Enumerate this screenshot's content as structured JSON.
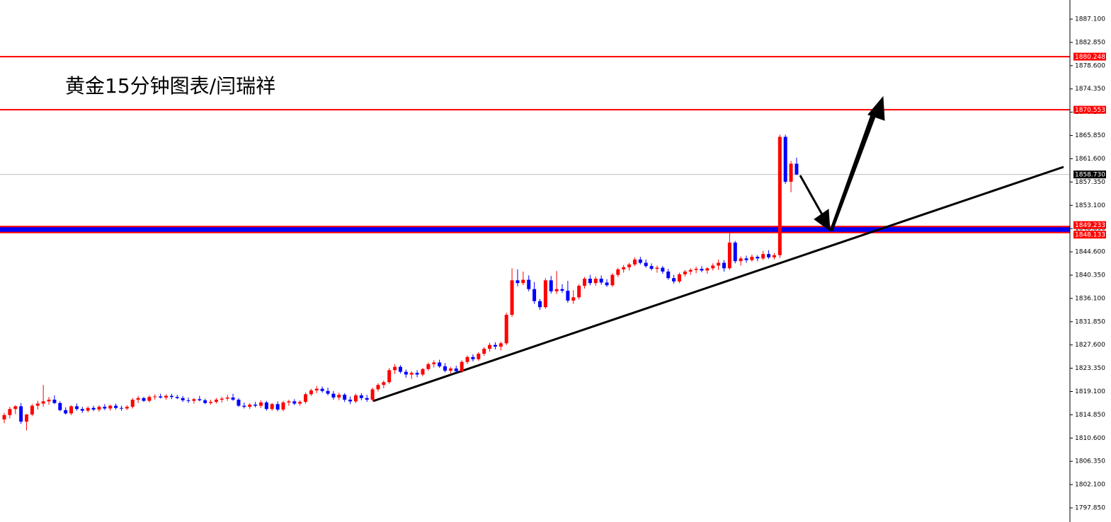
{
  "chart_data": {
    "type": "candlestick",
    "title": "黄金15分钟图表/闫瑞祥",
    "up_color": "#ff0000",
    "down_color": "#0000ff",
    "ylim": [
      1795.27,
      1890.59
    ],
    "yticks": [
      {
        "value": 1887.1,
        "label": "1887.100"
      },
      {
        "value": 1882.85,
        "label": "1882.850"
      },
      {
        "value": 1878.6,
        "label": "1878.600"
      },
      {
        "value": 1874.35,
        "label": "1874.350"
      },
      {
        "value": 1870.1,
        "label": "1870.100"
      },
      {
        "value": 1865.85,
        "label": "1865.850"
      },
      {
        "value": 1861.6,
        "label": "1861.600"
      },
      {
        "value": 1857.35,
        "label": "1857.350"
      },
      {
        "value": 1853.1,
        "label": "1853.100"
      },
      {
        "value": 1848.85,
        "label": "1848.850"
      },
      {
        "value": 1844.6,
        "label": "1844.600"
      },
      {
        "value": 1840.35,
        "label": "1840.350"
      },
      {
        "value": 1836.1,
        "label": "1836.100"
      },
      {
        "value": 1831.85,
        "label": "1831.850"
      },
      {
        "value": 1827.6,
        "label": "1827.600"
      },
      {
        "value": 1823.35,
        "label": "1823.350"
      },
      {
        "value": 1819.1,
        "label": "1819.100"
      },
      {
        "value": 1814.85,
        "label": "1814.850"
      },
      {
        "value": 1810.6,
        "label": "1810.600"
      },
      {
        "value": 1806.35,
        "label": "1806.350"
      },
      {
        "value": 1802.1,
        "label": "1802.100"
      },
      {
        "value": 1797.85,
        "label": "1797.850"
      }
    ],
    "levels": [
      {
        "value": 1880.248,
        "color": "#ff0000"
      },
      {
        "value": 1870.553,
        "color": "#ff0000"
      },
      {
        "value": 1849.233,
        "color": "#ff0000"
      },
      {
        "value": 1848.133,
        "color": "#ff0000"
      }
    ],
    "band_color": "#0000ff",
    "current_price": {
      "value": 1858.73,
      "label": "1858.730",
      "color": "#c0c0c0"
    },
    "candles": [
      [
        1814.0,
        1815.2,
        1813.3,
        1814.8
      ],
      [
        1814.8,
        1816.3,
        1814.2,
        1815.9
      ],
      [
        1815.9,
        1816.6,
        1815.0,
        1816.4
      ],
      [
        1816.4,
        1817.0,
        1813.2,
        1813.6
      ],
      [
        1813.6,
        1815.0,
        1812.0,
        1814.9
      ],
      [
        1814.9,
        1816.8,
        1814.6,
        1816.5
      ],
      [
        1816.5,
        1817.4,
        1815.8,
        1816.9
      ],
      [
        1816.9,
        1820.3,
        1816.3,
        1817.3
      ],
      [
        1817.3,
        1818.1,
        1816.7,
        1817.6
      ],
      [
        1817.6,
        1818.4,
        1816.8,
        1817.0
      ],
      [
        1817.0,
        1817.3,
        1815.5,
        1815.7
      ],
      [
        1815.7,
        1816.2,
        1814.9,
        1815.1
      ],
      [
        1815.1,
        1816.6,
        1814.8,
        1816.4
      ],
      [
        1816.4,
        1816.9,
        1815.6,
        1815.9
      ],
      [
        1815.9,
        1816.3,
        1815.2,
        1815.6
      ],
      [
        1815.6,
        1816.4,
        1815.3,
        1816.1
      ],
      [
        1816.1,
        1816.5,
        1815.5,
        1815.8
      ],
      [
        1815.8,
        1816.6,
        1815.4,
        1816.3
      ],
      [
        1816.3,
        1816.8,
        1815.7,
        1816.0
      ],
      [
        1816.0,
        1816.7,
        1815.6,
        1816.5
      ],
      [
        1816.5,
        1816.9,
        1815.8,
        1816.1
      ],
      [
        1816.1,
        1816.5,
        1815.6,
        1816.0
      ],
      [
        1816.0,
        1816.6,
        1815.7,
        1816.3
      ],
      [
        1816.3,
        1817.9,
        1816.0,
        1817.6
      ],
      [
        1817.6,
        1818.3,
        1817.0,
        1817.9
      ],
      [
        1817.9,
        1818.1,
        1817.2,
        1817.4
      ],
      [
        1817.4,
        1818.4,
        1817.1,
        1818.1
      ],
      [
        1818.1,
        1818.6,
        1817.6,
        1818.2
      ],
      [
        1818.2,
        1818.7,
        1817.8,
        1818.0
      ],
      [
        1818.0,
        1818.6,
        1817.6,
        1818.3
      ],
      [
        1818.3,
        1818.7,
        1817.7,
        1818.1
      ],
      [
        1818.1,
        1818.5,
        1817.7,
        1817.9
      ],
      [
        1817.9,
        1818.3,
        1817.2,
        1817.5
      ],
      [
        1817.5,
        1818.0,
        1817.0,
        1817.4
      ],
      [
        1817.4,
        1817.9,
        1816.9,
        1817.7
      ],
      [
        1817.7,
        1818.3,
        1817.3,
        1817.5
      ],
      [
        1817.5,
        1817.8,
        1816.8,
        1817.0
      ],
      [
        1817.0,
        1817.6,
        1816.7,
        1817.2
      ],
      [
        1817.2,
        1817.9,
        1816.9,
        1817.6
      ],
      [
        1817.6,
        1818.1,
        1817.1,
        1817.8
      ],
      [
        1817.8,
        1818.5,
        1817.4,
        1818.0
      ],
      [
        1818.0,
        1818.7,
        1817.4,
        1817.6
      ],
      [
        1817.6,
        1817.9,
        1816.3,
        1816.5
      ],
      [
        1816.5,
        1817.1,
        1816.0,
        1816.3
      ],
      [
        1816.3,
        1817.0,
        1815.9,
        1816.7
      ],
      [
        1816.7,
        1817.2,
        1816.2,
        1816.5
      ],
      [
        1816.5,
        1817.5,
        1816.1,
        1817.1
      ],
      [
        1817.1,
        1817.4,
        1815.6,
        1815.9
      ],
      [
        1815.9,
        1817.0,
        1815.6,
        1816.8
      ],
      [
        1816.8,
        1817.3,
        1815.5,
        1815.8
      ],
      [
        1815.8,
        1817.4,
        1815.5,
        1817.1
      ],
      [
        1817.1,
        1817.6,
        1816.5,
        1817.3
      ],
      [
        1817.3,
        1817.7,
        1816.6,
        1816.9
      ],
      [
        1816.9,
        1817.5,
        1816.5,
        1817.2
      ],
      [
        1817.2,
        1818.9,
        1816.9,
        1818.6
      ],
      [
        1818.6,
        1819.6,
        1818.3,
        1819.3
      ],
      [
        1819.3,
        1820.1,
        1818.8,
        1819.6
      ],
      [
        1819.6,
        1820.0,
        1818.9,
        1819.2
      ],
      [
        1819.2,
        1819.8,
        1818.4,
        1818.7
      ],
      [
        1818.7,
        1819.2,
        1817.6,
        1818.0
      ],
      [
        1818.0,
        1818.9,
        1817.5,
        1818.5
      ],
      [
        1818.5,
        1818.8,
        1817.2,
        1817.6
      ],
      [
        1817.6,
        1818.2,
        1816.8,
        1817.3
      ],
      [
        1817.3,
        1818.7,
        1817.0,
        1818.4
      ],
      [
        1818.4,
        1818.8,
        1817.5,
        1817.9
      ],
      [
        1817.9,
        1818.5,
        1817.2,
        1817.6
      ],
      [
        1817.6,
        1819.8,
        1817.3,
        1819.5
      ],
      [
        1819.5,
        1820.6,
        1819.1,
        1820.3
      ],
      [
        1820.3,
        1821.1,
        1819.7,
        1820.8
      ],
      [
        1820.8,
        1823.4,
        1820.5,
        1823.0
      ],
      [
        1823.0,
        1824.1,
        1822.3,
        1823.6
      ],
      [
        1823.6,
        1823.9,
        1822.4,
        1822.7
      ],
      [
        1822.7,
        1823.1,
        1821.6,
        1822.2
      ],
      [
        1822.2,
        1822.8,
        1821.4,
        1822.5
      ],
      [
        1822.5,
        1823.0,
        1821.7,
        1822.2
      ],
      [
        1822.2,
        1823.4,
        1821.9,
        1823.2
      ],
      [
        1823.2,
        1824.4,
        1822.9,
        1824.1
      ],
      [
        1824.1,
        1824.8,
        1823.5,
        1824.4
      ],
      [
        1824.4,
        1824.9,
        1823.4,
        1823.7
      ],
      [
        1823.7,
        1824.3,
        1822.6,
        1822.9
      ],
      [
        1822.9,
        1823.6,
        1822.4,
        1823.3
      ],
      [
        1823.3,
        1823.8,
        1822.5,
        1822.8
      ],
      [
        1822.8,
        1824.8,
        1822.5,
        1824.5
      ],
      [
        1824.5,
        1825.7,
        1824.1,
        1825.4
      ],
      [
        1825.4,
        1825.9,
        1824.6,
        1825.0
      ],
      [
        1825.0,
        1826.3,
        1824.7,
        1826.0
      ],
      [
        1826.0,
        1827.2,
        1825.6,
        1826.9
      ],
      [
        1826.9,
        1828.0,
        1826.4,
        1827.6
      ],
      [
        1827.6,
        1828.1,
        1826.8,
        1827.3
      ],
      [
        1827.3,
        1828.2,
        1826.6,
        1827.9
      ],
      [
        1827.9,
        1833.5,
        1827.6,
        1833.1
      ],
      [
        1833.1,
        1841.6,
        1832.7,
        1839.4
      ],
      [
        1839.4,
        1841.4,
        1838.3,
        1838.9
      ],
      [
        1838.9,
        1841.0,
        1838.5,
        1839.5
      ],
      [
        1839.5,
        1840.3,
        1837.4,
        1837.8
      ],
      [
        1837.8,
        1839.1,
        1835.1,
        1835.6
      ],
      [
        1835.6,
        1836.0,
        1834.0,
        1834.5
      ],
      [
        1834.5,
        1839.8,
        1834.2,
        1839.4
      ],
      [
        1839.4,
        1840.2,
        1837.0,
        1837.4
      ],
      [
        1837.4,
        1841.1,
        1836.9,
        1837.8
      ],
      [
        1837.8,
        1838.7,
        1837.1,
        1837.5
      ],
      [
        1837.5,
        1839.3,
        1835.3,
        1835.7
      ],
      [
        1835.7,
        1837.6,
        1835.1,
        1836.3
      ],
      [
        1836.3,
        1838.7,
        1835.9,
        1838.4
      ],
      [
        1838.4,
        1840.0,
        1837.9,
        1839.7
      ],
      [
        1839.7,
        1840.4,
        1838.5,
        1838.9
      ],
      [
        1838.9,
        1840.1,
        1838.4,
        1839.7
      ],
      [
        1839.7,
        1840.3,
        1838.6,
        1839.0
      ],
      [
        1839.0,
        1839.6,
        1838.2,
        1838.5
      ],
      [
        1838.5,
        1840.7,
        1838.2,
        1840.4
      ],
      [
        1840.4,
        1841.7,
        1840.0,
        1841.4
      ],
      [
        1841.4,
        1842.2,
        1840.8,
        1841.8
      ],
      [
        1841.8,
        1842.6,
        1841.2,
        1842.3
      ],
      [
        1842.3,
        1843.6,
        1842.0,
        1843.2
      ],
      [
        1843.2,
        1843.7,
        1842.3,
        1842.6
      ],
      [
        1842.6,
        1843.2,
        1841.7,
        1842.0
      ],
      [
        1842.0,
        1842.5,
        1841.2,
        1841.5
      ],
      [
        1841.5,
        1842.1,
        1840.8,
        1841.7
      ],
      [
        1841.7,
        1842.0,
        1840.6,
        1841.0
      ],
      [
        1841.0,
        1841.5,
        1839.5,
        1839.8
      ],
      [
        1839.8,
        1840.4,
        1838.8,
        1839.2
      ],
      [
        1839.2,
        1840.8,
        1838.9,
        1840.5
      ],
      [
        1840.5,
        1841.3,
        1840.1,
        1841.0
      ],
      [
        1841.0,
        1841.6,
        1840.4,
        1841.3
      ],
      [
        1841.3,
        1841.9,
        1840.7,
        1841.5
      ],
      [
        1841.5,
        1842.0,
        1840.9,
        1841.2
      ],
      [
        1841.2,
        1841.8,
        1840.6,
        1841.6
      ],
      [
        1841.6,
        1842.5,
        1841.2,
        1842.1
      ],
      [
        1842.1,
        1843.2,
        1841.3,
        1842.6
      ],
      [
        1842.6,
        1843.1,
        1841.0,
        1841.6
      ],
      [
        1841.6,
        1848.0,
        1841.3,
        1846.3
      ],
      [
        1846.3,
        1846.6,
        1842.5,
        1842.9
      ],
      [
        1842.9,
        1843.8,
        1842.1,
        1843.4
      ],
      [
        1843.4,
        1843.9,
        1842.6,
        1843.1
      ],
      [
        1843.1,
        1844.1,
        1842.8,
        1843.7
      ],
      [
        1843.7,
        1844.0,
        1842.9,
        1843.4
      ],
      [
        1843.4,
        1844.8,
        1843.1,
        1844.2
      ],
      [
        1844.2,
        1844.9,
        1843.3,
        1843.6
      ],
      [
        1843.6,
        1844.4,
        1843.2,
        1844.0
      ],
      [
        1844.0,
        1866.0,
        1843.5,
        1865.6
      ],
      [
        1865.6,
        1866.0,
        1857.0,
        1857.4
      ],
      [
        1857.4,
        1861.2,
        1855.5,
        1860.7
      ],
      [
        1860.7,
        1861.8,
        1858.6,
        1858.73
      ]
    ]
  }
}
